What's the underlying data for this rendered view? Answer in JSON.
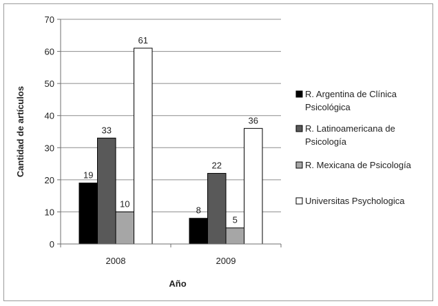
{
  "chart_data": {
    "type": "bar",
    "title": "",
    "xlabel": "Año",
    "ylabel": "Cantidad de artículos",
    "ylim": [
      0,
      70
    ],
    "yticks": [
      "0",
      "10",
      "20",
      "30",
      "40",
      "50",
      "60",
      "70"
    ],
    "categories": [
      "2008",
      "2009"
    ],
    "grid": true,
    "legend_position": "right",
    "series": [
      {
        "name": "R. Argentina de Clínica Psicológica",
        "legend_lines": [
          "R. Argentina de Clínica",
          "Psicológica"
        ],
        "color": "#000000",
        "values": [
          19,
          8
        ],
        "labels": [
          "19",
          "8"
        ]
      },
      {
        "name": "R. Latinoamericana de Psicología",
        "legend_lines": [
          "R. Latinoamericana de",
          "Psicología"
        ],
        "color": "#595959",
        "values": [
          33,
          22
        ],
        "labels": [
          "33",
          "22"
        ]
      },
      {
        "name": "R. Mexicana de Psicología",
        "legend_lines": [
          "R. Mexicana de Psicología"
        ],
        "color": "#a6a6a6",
        "values": [
          10,
          5
        ],
        "labels": [
          "10",
          "5"
        ]
      },
      {
        "name": "Universitas Psychologica",
        "legend_lines": [
          "Universitas Psychologica"
        ],
        "color": "#ffffff",
        "values": [
          61,
          36
        ],
        "labels": [
          "61",
          "36"
        ]
      }
    ]
  }
}
